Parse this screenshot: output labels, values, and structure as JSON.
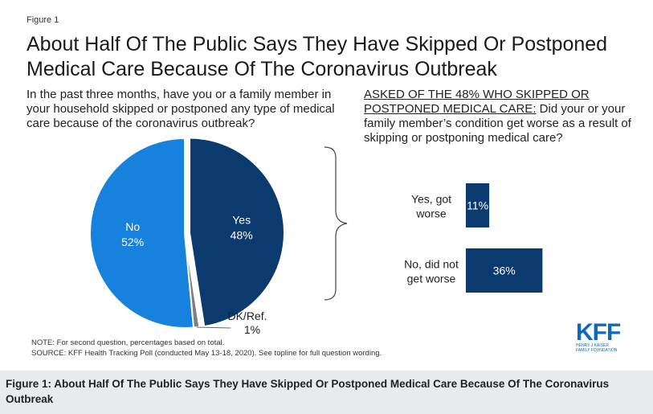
{
  "figure_label": "Figure 1",
  "title": "About Half Of The Public Says They Have Skipped Or Postponed Medical Care Because Of The Coronavirus Outbreak",
  "question1": "In the past three months, have you or a family member in your household skipped or postponed any type of medical care because of the coronavirus outbreak?",
  "question2_prefix": "ASKED OF THE 48% WHO SKIPPED OR POSTPONED MEDICAL CARE:",
  "question2_rest": " Did your or your family member’s condition get worse as a result of skipping or postponing medical care?",
  "note": "NOTE: For second question, percentages based on total.",
  "source": "SOURCE: KFF Health Tracking Poll (conducted May 13-18, 2020). See topline for full question wording.",
  "logo": {
    "mark": "KFF",
    "sub": "HENRY J KAISER FAMILY FOUNDATION"
  },
  "caption": "Figure 1: About Half Of The Public Says They Have Skipped Or Postponed Medical Care Because Of The Coronavirus Outbreak",
  "colors": {
    "yes": "#0b3b6e",
    "no": "#1682dd",
    "dk": "#7f7f7f",
    "bar": "#0b3b6e"
  },
  "chart_data": [
    {
      "type": "pie",
      "slices": [
        {
          "label": "Yes",
          "value": 48,
          "value_label": "48%"
        },
        {
          "label": "DK/Ref.",
          "value": 1,
          "value_label": "1%"
        },
        {
          "label": "No",
          "value": 52,
          "value_label": "52%"
        }
      ]
    },
    {
      "type": "bar",
      "orientation": "horizontal",
      "categories": [
        "Yes, got worse",
        "No, did not get worse"
      ],
      "values": [
        11,
        36
      ],
      "value_labels": [
        "11%",
        "36%"
      ]
    }
  ]
}
